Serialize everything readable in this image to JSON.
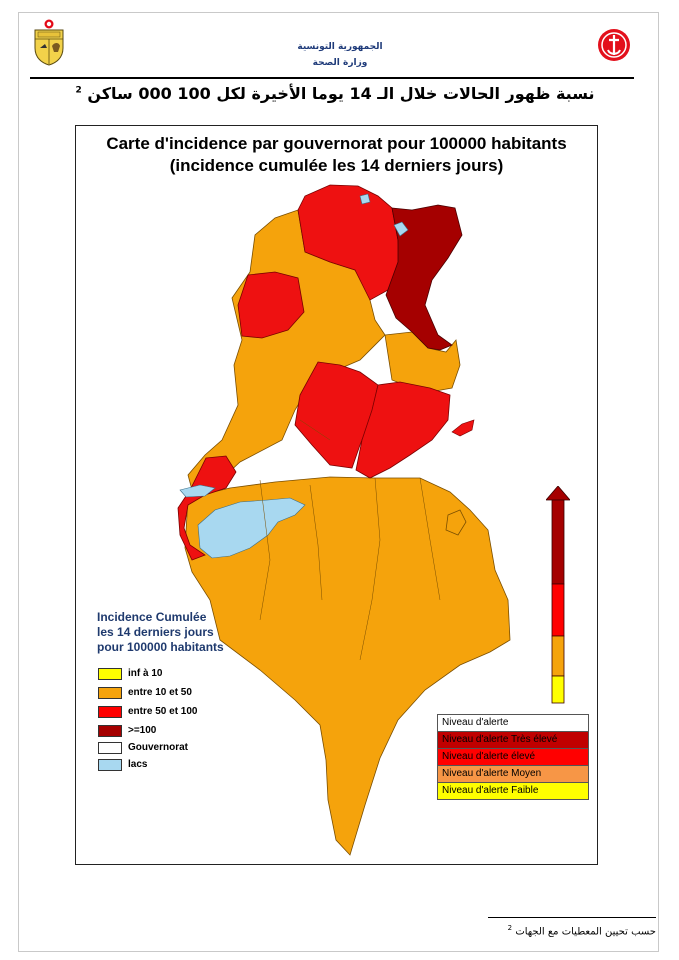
{
  "header": {
    "ministry_line1": "الجمهورية التونسية",
    "ministry_line2": "وزارة الصحة",
    "title_ar": "نسبة ظهور الحالات خلال الـ 14 يوما الأخيرة لكل 100 000 ساكن",
    "title_note": "2"
  },
  "map": {
    "title_line1": "Carte d'incidence par gouvernorat pour 100000 habitants",
    "title_line2": "(incidence cumulée les 14 derniers jours)"
  },
  "legend": {
    "heading_line1": "Incidence Cumulée",
    "heading_line2": "les 14 derniers jours",
    "heading_line3": "pour 100000 habitants",
    "items": [
      {
        "label": "inf à 10",
        "color": "#ffff00"
      },
      {
        "label": "entre 10 et 50",
        "color": "#f5a30c"
      },
      {
        "label": "entre 50 et 100",
        "color": "#ff0000"
      },
      {
        "label": ">=100",
        "color": "#a50000"
      },
      {
        "label": "Gouvernorat",
        "color": "#ffffff"
      },
      {
        "label": "lacs",
        "color": "#a8d8f0"
      }
    ]
  },
  "alert_levels": {
    "header": "Niveau d'alerte",
    "rows": [
      {
        "label": "Niveau d'alerte Très élevé",
        "color": "#c00000"
      },
      {
        "label": "Niveau d'alerte élevé",
        "color": "#ff0000"
      },
      {
        "label": "Niveau d'alerte Moyen",
        "color": "#f79646"
      },
      {
        "label": "Niveau d'alerte Faible",
        "color": "#ffff00"
      }
    ]
  },
  "footer": {
    "note": "حسب تحيين المعطيات مع الجهات",
    "note_number": "2"
  }
}
